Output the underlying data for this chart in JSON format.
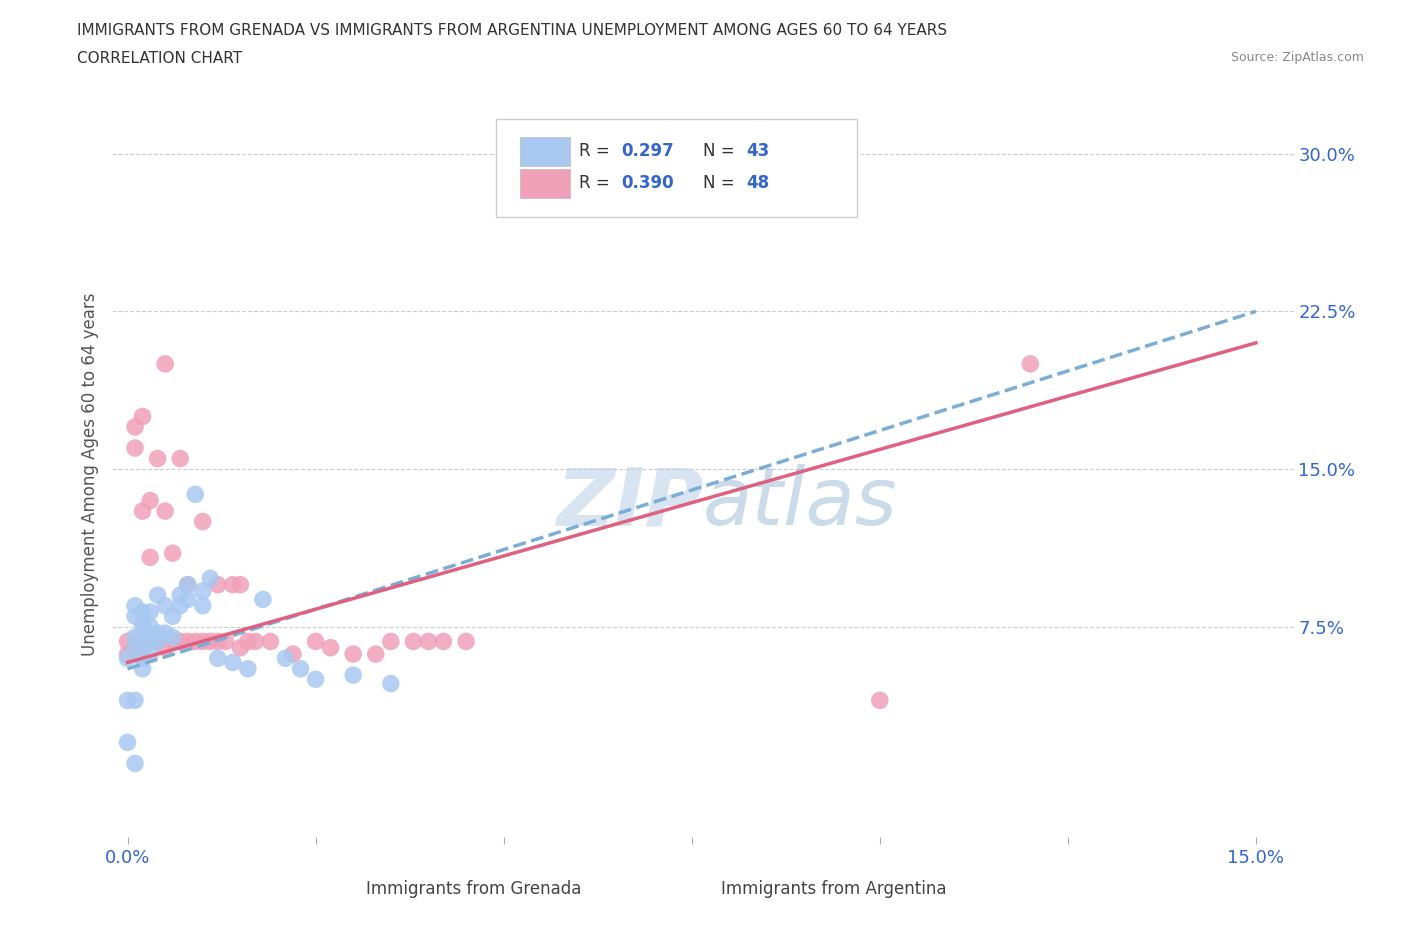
{
  "title_line1": "IMMIGRANTS FROM GRENADA VS IMMIGRANTS FROM ARGENTINA UNEMPLOYMENT AMONG AGES 60 TO 64 YEARS",
  "title_line2": "CORRELATION CHART",
  "source": "Source: ZipAtlas.com",
  "ylabel": "Unemployment Among Ages 60 to 64 years",
  "xlim": [
    -0.002,
    0.155
  ],
  "ylim": [
    -0.025,
    0.32
  ],
  "grenada_color": "#a8c8f0",
  "argentina_color": "#f0a0b8",
  "grenada_line_color": "#7aaed6",
  "argentina_line_color": "#e06080",
  "grenada_R": 0.297,
  "grenada_N": 43,
  "argentina_R": 0.39,
  "argentina_N": 48,
  "watermark": "ZIPatlas",
  "legend_label_grenada": "Immigrants from Grenada",
  "legend_label_argentina": "Immigrants from Argentina",
  "grenada_x": [
    0.0,
    0.0,
    0.0,
    0.001,
    0.001,
    0.001,
    0.001,
    0.001,
    0.001,
    0.002,
    0.002,
    0.002,
    0.002,
    0.002,
    0.002,
    0.003,
    0.003,
    0.003,
    0.003,
    0.004,
    0.004,
    0.004,
    0.005,
    0.005,
    0.006,
    0.006,
    0.007,
    0.007,
    0.008,
    0.008,
    0.009,
    0.01,
    0.01,
    0.011,
    0.012,
    0.014,
    0.016,
    0.018,
    0.021,
    0.023,
    0.025,
    0.03,
    0.035
  ],
  "grenada_y": [
    0.02,
    0.04,
    0.06,
    0.01,
    0.04,
    0.065,
    0.07,
    0.08,
    0.085,
    0.055,
    0.06,
    0.068,
    0.072,
    0.076,
    0.082,
    0.062,
    0.068,
    0.075,
    0.082,
    0.068,
    0.072,
    0.09,
    0.072,
    0.085,
    0.07,
    0.08,
    0.085,
    0.09,
    0.088,
    0.095,
    0.138,
    0.085,
    0.092,
    0.098,
    0.06,
    0.058,
    0.055,
    0.088,
    0.06,
    0.055,
    0.05,
    0.052,
    0.048
  ],
  "argentina_x": [
    0.0,
    0.0,
    0.001,
    0.001,
    0.001,
    0.002,
    0.002,
    0.002,
    0.002,
    0.003,
    0.003,
    0.003,
    0.004,
    0.004,
    0.005,
    0.005,
    0.005,
    0.006,
    0.006,
    0.007,
    0.007,
    0.008,
    0.008,
    0.009,
    0.01,
    0.01,
    0.011,
    0.012,
    0.012,
    0.013,
    0.014,
    0.015,
    0.015,
    0.016,
    0.017,
    0.019,
    0.022,
    0.025,
    0.027,
    0.03,
    0.033,
    0.035,
    0.038,
    0.04,
    0.042,
    0.045,
    0.1,
    0.12
  ],
  "argentina_y": [
    0.062,
    0.068,
    0.16,
    0.17,
    0.065,
    0.065,
    0.13,
    0.175,
    0.068,
    0.068,
    0.108,
    0.135,
    0.068,
    0.155,
    0.065,
    0.13,
    0.2,
    0.068,
    0.11,
    0.068,
    0.155,
    0.068,
    0.095,
    0.068,
    0.068,
    0.125,
    0.068,
    0.068,
    0.095,
    0.068,
    0.095,
    0.065,
    0.095,
    0.068,
    0.068,
    0.068,
    0.062,
    0.068,
    0.065,
    0.062,
    0.062,
    0.068,
    0.068,
    0.068,
    0.068,
    0.068,
    0.04,
    0.2
  ],
  "grenada_trendline_x0": 0.0,
  "grenada_trendline_x1": 0.15,
  "grenada_trendline_y0": 0.055,
  "grenada_trendline_y1": 0.225,
  "argentina_trendline_x0": 0.0,
  "argentina_trendline_x1": 0.15,
  "argentina_trendline_y0": 0.058,
  "argentina_trendline_y1": 0.21
}
